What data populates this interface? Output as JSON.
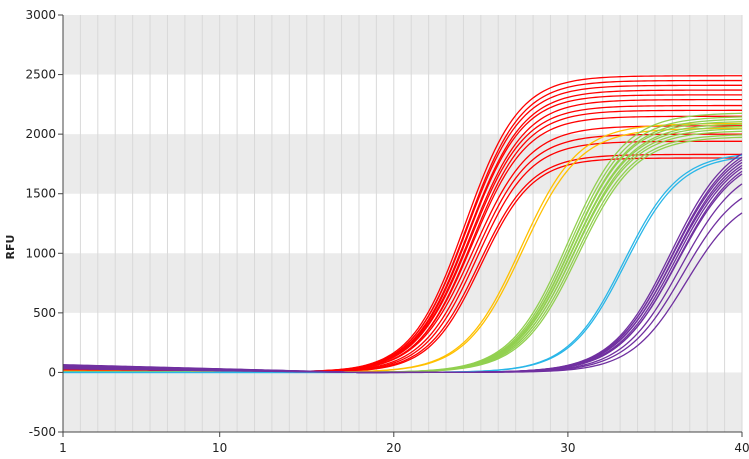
{
  "chart_data": {
    "type": "line",
    "title": "",
    "xlabel": "",
    "ylabel": "RFU",
    "xlim": [
      1,
      40
    ],
    "ylim": [
      -500,
      3000
    ],
    "x_ticks": [
      1,
      10,
      20,
      30,
      40
    ],
    "y_ticks": [
      -500,
      0,
      500,
      1000,
      1500,
      2000,
      2500,
      3000
    ],
    "grid": {
      "vertical_every_cycle": true,
      "horizontal_bands": [
        [
          -500,
          0
        ],
        [
          500,
          1000
        ],
        [
          1500,
          2000
        ],
        [
          2500,
          3000
        ]
      ]
    },
    "band_color": "#ebebeb",
    "grid_color": "#d9d9d9",
    "series": [
      {
        "color": "#ff0000",
        "baseline": 20,
        "plateau": 2490,
        "ct": 24.1,
        "slope": 1.55
      },
      {
        "color": "#ff0000",
        "baseline": 18,
        "plateau": 2450,
        "ct": 24.2,
        "slope": 1.55
      },
      {
        "color": "#ff0000",
        "baseline": 22,
        "plateau": 2410,
        "ct": 24.2,
        "slope": 1.56
      },
      {
        "color": "#ff0000",
        "baseline": 20,
        "plateau": 2370,
        "ct": 24.3,
        "slope": 1.57
      },
      {
        "color": "#ff0000",
        "baseline": 25,
        "plateau": 2330,
        "ct": 24.3,
        "slope": 1.55
      },
      {
        "color": "#ff0000",
        "baseline": 20,
        "plateau": 2290,
        "ct": 24.4,
        "slope": 1.58
      },
      {
        "color": "#ff0000",
        "baseline": 18,
        "plateau": 2240,
        "ct": 24.4,
        "slope": 1.57
      },
      {
        "color": "#ff0000",
        "baseline": 22,
        "plateau": 2200,
        "ct": 24.5,
        "slope": 1.55
      },
      {
        "color": "#ff0000",
        "baseline": 20,
        "plateau": 2150,
        "ct": 24.5,
        "slope": 1.56
      },
      {
        "color": "#ff0000",
        "baseline": 15,
        "plateau": 2070,
        "ct": 24.6,
        "slope": 1.6
      },
      {
        "color": "#ff0000",
        "baseline": 20,
        "plateau": 2000,
        "ct": 24.7,
        "slope": 1.55
      },
      {
        "color": "#ff0000",
        "baseline": 22,
        "plateau": 1940,
        "ct": 24.8,
        "slope": 1.52
      },
      {
        "color": "#ff0000",
        "baseline": 20,
        "plateau": 1830,
        "ct": 24.9,
        "slope": 1.5
      },
      {
        "color": "#ff0000",
        "baseline": 18,
        "plateau": 1800,
        "ct": 25.0,
        "slope": 1.48
      },
      {
        "color": "#ffc000",
        "baseline": 10,
        "plateau": 2090,
        "ct": 27.3,
        "slope": 1.65
      },
      {
        "color": "#ffc000",
        "baseline": 10,
        "plateau": 2050,
        "ct": 27.4,
        "slope": 1.65
      },
      {
        "color": "#92d050",
        "baseline": 5,
        "plateau": 2180,
        "ct": 30.0,
        "slope": 1.65
      },
      {
        "color": "#92d050",
        "baseline": 5,
        "plateau": 2150,
        "ct": 30.1,
        "slope": 1.65
      },
      {
        "color": "#92d050",
        "baseline": 5,
        "plateau": 2130,
        "ct": 30.2,
        "slope": 1.66
      },
      {
        "color": "#92d050",
        "baseline": 5,
        "plateau": 2110,
        "ct": 30.2,
        "slope": 1.65
      },
      {
        "color": "#92d050",
        "baseline": 5,
        "plateau": 2090,
        "ct": 30.3,
        "slope": 1.67
      },
      {
        "color": "#92d050",
        "baseline": 5,
        "plateau": 2070,
        "ct": 30.3,
        "slope": 1.66
      },
      {
        "color": "#92d050",
        "baseline": 5,
        "plateau": 2050,
        "ct": 30.4,
        "slope": 1.65
      },
      {
        "color": "#92d050",
        "baseline": 5,
        "plateau": 2030,
        "ct": 30.4,
        "slope": 1.67
      },
      {
        "color": "#92d050",
        "baseline": 5,
        "plateau": 2000,
        "ct": 30.5,
        "slope": 1.66
      },
      {
        "color": "#92d050",
        "baseline": 5,
        "plateau": 1980,
        "ct": 30.6,
        "slope": 1.65
      },
      {
        "color": "#29b6e8",
        "baseline": 0,
        "plateau": 1850,
        "ct": 33.2,
        "slope": 1.6
      },
      {
        "color": "#29b6e8",
        "baseline": 0,
        "plateau": 1830,
        "ct": 33.3,
        "slope": 1.6
      },
      {
        "color": "#7030a0",
        "baseline": 60,
        "plateau": 2000,
        "ct": 35.9,
        "slope": 1.7
      },
      {
        "color": "#7030a0",
        "baseline": 55,
        "plateau": 1980,
        "ct": 36.0,
        "slope": 1.7
      },
      {
        "color": "#7030a0",
        "baseline": 65,
        "plateau": 1960,
        "ct": 36.0,
        "slope": 1.72
      },
      {
        "color": "#7030a0",
        "baseline": 50,
        "plateau": 1940,
        "ct": 36.1,
        "slope": 1.7
      },
      {
        "color": "#7030a0",
        "baseline": 60,
        "plateau": 1920,
        "ct": 36.1,
        "slope": 1.73
      },
      {
        "color": "#7030a0",
        "baseline": 55,
        "plateau": 1900,
        "ct": 36.2,
        "slope": 1.7
      },
      {
        "color": "#7030a0",
        "baseline": 45,
        "plateau": 1880,
        "ct": 36.3,
        "slope": 1.7
      },
      {
        "color": "#7030a0",
        "baseline": 50,
        "plateau": 1860,
        "ct": 36.3,
        "slope": 1.72
      },
      {
        "color": "#7030a0",
        "baseline": 40,
        "plateau": 1780,
        "ct": 36.5,
        "slope": 1.68
      },
      {
        "color": "#7030a0",
        "baseline": 35,
        "plateau": 1650,
        "ct": 36.6,
        "slope": 1.65
      },
      {
        "color": "#7030a0",
        "baseline": 30,
        "plateau": 1520,
        "ct": 36.8,
        "slope": 1.6
      }
    ]
  }
}
